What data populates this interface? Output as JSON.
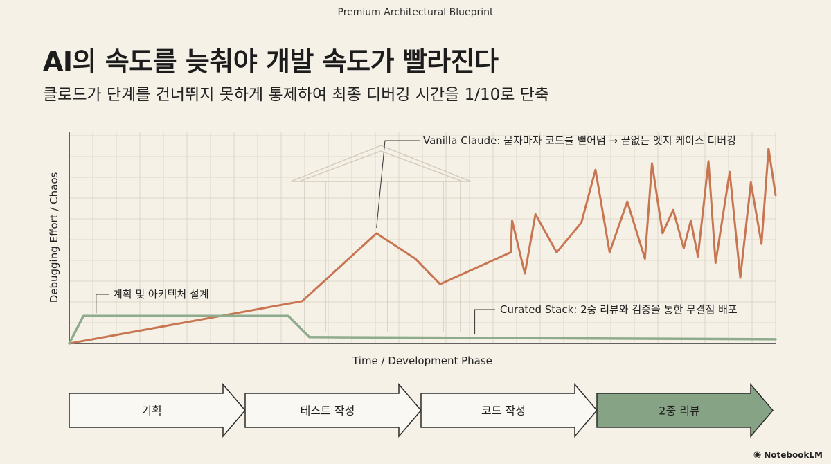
{
  "header": {
    "caption": "Premium Architectural Blueprint"
  },
  "headline": {
    "title": "AI의 속도를 늦춰야 개발 속도가 빨라진다",
    "subtitle": "클로드가 단계를 건너뛰지 못하게 통제하여 최종 디버깅 시간을 1/10로 단축"
  },
  "chart_data": {
    "type": "line",
    "title": "",
    "xlabel": "Time / Development Phase",
    "ylabel": "Debugging Effort / Chaos",
    "xlim": [
      0,
      100
    ],
    "ylim": [
      0,
      100
    ],
    "grid": true,
    "series": [
      {
        "name": "Vanilla Claude",
        "color": "#c87552",
        "x": [
          0,
          33,
          43.5,
          49,
          52.5,
          62.5,
          62.7,
          64.5,
          66,
          69,
          72.5,
          74.5,
          76.5,
          79,
          81.5,
          82.5,
          84,
          85.5,
          87,
          88,
          89,
          90.5,
          91.5,
          93.5,
          95,
          96.5,
          98,
          99,
          100
        ],
        "y": [
          0,
          20,
          52,
          40,
          28,
          43,
          58,
          33,
          61,
          43,
          57,
          82,
          43,
          67,
          40,
          85,
          52,
          63,
          45,
          58,
          41,
          86,
          38,
          81,
          31,
          76,
          47,
          92,
          70
        ]
      },
      {
        "name": "Curated Stack",
        "color": "#8fab8d",
        "x": [
          0,
          2,
          31,
          34,
          100
        ],
        "y": [
          0,
          13,
          13,
          3,
          2
        ]
      }
    ],
    "annotations": [
      {
        "text": "Vanilla Claude: 묻자마자 코드를 뱉어냄 → 끝없는 엣지 케이스 디버깅",
        "x": 43.5,
        "y": 52
      },
      {
        "text": "계획 및 아키텍처 설계",
        "x": 4,
        "y": 13
      },
      {
        "text": "Curated Stack: 2중 리뷰와 검증을 통한 무결점 배포",
        "x": 48,
        "y": 3
      }
    ]
  },
  "phases": [
    {
      "label": "기획",
      "active": false
    },
    {
      "label": "테스트 작성",
      "active": false
    },
    {
      "label": "코드 작성",
      "active": false
    },
    {
      "label": "2중 리뷰",
      "active": true
    }
  ],
  "colors": {
    "background": "#f6f1e7",
    "grid": "#ddd6c8",
    "axis": "#333333",
    "chaos_line": "#c87552",
    "stack_line": "#8fab8d",
    "active_phase_fill": "#86a485",
    "phase_fill": "#faf8f2"
  },
  "brand": {
    "name": "NotebookLM",
    "icon": "notebook-icon"
  }
}
